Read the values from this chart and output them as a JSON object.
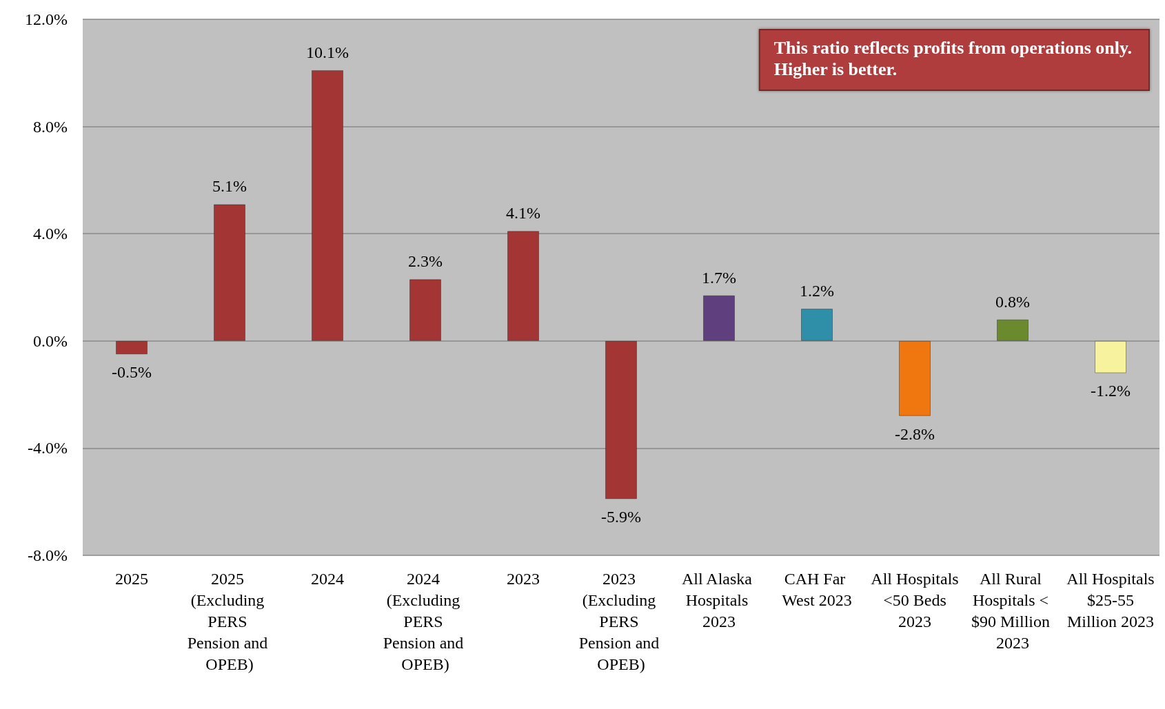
{
  "chart_data": {
    "type": "bar",
    "categories": [
      "2025",
      "2025 (Excluding PERS Pension and OPEB)",
      "2024",
      "2024 (Excluding PERS Pension and OPEB)",
      "2023",
      "2023 (Excluding PERS Pension and OPEB)",
      "All Alaska Hospitals 2023",
      "CAH Far West 2023",
      "All Hospitals <50 Beds 2023",
      "All Rural Hospitals < $90 Million 2023",
      "All Hospitals $25-55 Million 2023"
    ],
    "values": [
      -0.5,
      5.1,
      10.1,
      2.3,
      4.1,
      -5.9,
      1.7,
      1.2,
      -2.8,
      0.8,
      -1.2
    ],
    "value_labels": [
      "-0.5%",
      "5.1%",
      "10.1%",
      "2.3%",
      "4.1%",
      "-5.9%",
      "1.7%",
      "1.2%",
      "-2.8%",
      "0.8%",
      "-1.2%"
    ],
    "colors": [
      "#a33535",
      "#a33535",
      "#a33535",
      "#a33535",
      "#a33535",
      "#a33535",
      "#5f3f7e",
      "#2f8ea8",
      "#f0760f",
      "#6b8a2e",
      "#f6f29e"
    ],
    "ylim": [
      -8,
      12
    ],
    "yticks": [
      {
        "value": -8,
        "label": "-8.0%"
      },
      {
        "value": -4,
        "label": "-4.0%"
      },
      {
        "value": 0,
        "label": "0.0%"
      },
      {
        "value": 4,
        "label": "4.0%"
      },
      {
        "value": 8,
        "label": "8.0%"
      },
      {
        "value": 12,
        "label": "12.0%"
      }
    ],
    "grid": "y",
    "annotations": [
      "This ratio reflects profits from operations only.\nHigher is better."
    ]
  }
}
